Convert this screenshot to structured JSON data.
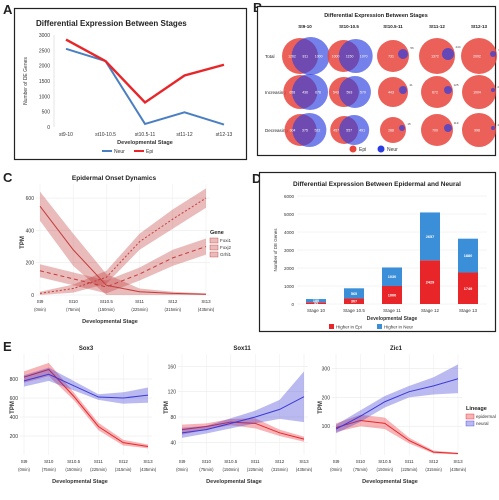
{
  "panels": {
    "a": "A",
    "b": "B",
    "c": "C",
    "d": "D",
    "e": "E"
  },
  "chart_data": [
    {
      "id": "A",
      "type": "line",
      "title": "Differential Expression Between Stages",
      "xlabel": "Developmental Stage",
      "ylabel": "Number of DE Genes",
      "categories": [
        "st9-10",
        "st10-10.5",
        "st10.5-11",
        "st11-12",
        "st12-13"
      ],
      "ylim": [
        0,
        3000
      ],
      "yticks": [
        0,
        500,
        1000,
        1500,
        2000,
        2500,
        3000
      ],
      "series": [
        {
          "name": "Neur",
          "color": "#4a7fc1",
          "values": [
            2550,
            2150,
            100,
            480,
            80
          ]
        },
        {
          "name": "Epi",
          "color": "#e8262a",
          "values": [
            2850,
            2150,
            800,
            1680,
            2030
          ]
        }
      ],
      "legend_position": "bottom"
    },
    {
      "id": "B",
      "type": "venn-grid",
      "title": "Differential Expression Between Stages",
      "columns": [
        "St9-10",
        "St10-10.5",
        "St10.5-11",
        "St11-12",
        "St12-13"
      ],
      "rows": [
        "Total",
        "Increasing",
        "Decreasing"
      ],
      "legend": [
        {
          "name": "Epi",
          "color": "#e8453c"
        },
        {
          "name": "Neur",
          "color": "#2b3de0"
        }
      ],
      "cells": [
        [
          {
            "epi_r": 18,
            "neur_r": 19,
            "overlap": 0.55,
            "labels": [
              "1262",
              "811",
              "1000"
            ]
          },
          {
            "epi_r": 16,
            "neur_r": 17,
            "overlap": 0.45,
            "labels": [
              "1000",
              "1150",
              "1070"
            ]
          },
          {
            "epi_r": 16,
            "neur_r": 5,
            "overlap": 0.15,
            "labels": [
              "731",
              "56"
            ]
          },
          {
            "epi_r": 18,
            "neur_r": 6,
            "overlap": 0.15,
            "labels": [
              "1372",
              "244"
            ]
          },
          {
            "epi_r": 18,
            "neur_r": 3,
            "overlap": 0.1,
            "labels": [
              "2002",
              "69"
            ]
          }
        ],
        [
          {
            "epi_r": 17,
            "neur_r": 18,
            "overlap": 0.55,
            "labels": [
              "658",
              "436",
              "676"
            ]
          },
          {
            "epi_r": 15,
            "neur_r": 16,
            "overlap": 0.45,
            "labels": [
              "543",
              "593",
              "579"
            ]
          },
          {
            "epi_r": 15,
            "neur_r": 4,
            "overlap": 0.1,
            "labels": [
              "443",
              "41"
            ]
          },
          {
            "epi_r": 16,
            "neur_r": 4,
            "overlap": 0.1,
            "labels": [
              "672",
              "125"
            ]
          },
          {
            "epi_r": 17,
            "neur_r": 2,
            "overlap": 0.1,
            "labels": [
              "1004",
              "26"
            ]
          }
        ],
        [
          {
            "epi_r": 16,
            "neur_r": 17,
            "overlap": 0.55,
            "labels": [
              "604",
              "375",
              "522"
            ]
          },
          {
            "epi_r": 14,
            "neur_r": 15,
            "overlap": 0.45,
            "labels": [
              "457",
              "557",
              "491"
            ]
          },
          {
            "epi_r": 13,
            "neur_r": 3,
            "overlap": 0.1,
            "labels": [
              "288",
              "15"
            ]
          },
          {
            "epi_r": 16,
            "neur_r": 4,
            "overlap": 0.1,
            "labels": [
              "700",
              "119"
            ]
          },
          {
            "epi_r": 17,
            "neur_r": 2,
            "overlap": 0.1,
            "labels": [
              "998",
              "43"
            ]
          }
        ]
      ]
    },
    {
      "id": "C",
      "type": "line",
      "title": "Epidermal Onset Dynamics",
      "xlabel": "Developmental Stage",
      "ylabel": "TPM",
      "categories": [
        "St9",
        "St10",
        "St10.5",
        "St11",
        "St12",
        "St13"
      ],
      "sublabels": [
        "(0min)",
        "(75min)",
        "(150min)",
        "(225min)",
        "(315min)",
        "(435min)"
      ],
      "ylim": [
        0,
        650
      ],
      "yticks": [
        0,
        200,
        400,
        600
      ],
      "ytick_labels": [
        "0",
        "200",
        "400",
        "600"
      ],
      "legend_title": "Gene",
      "series": [
        {
          "name": "Foxi1",
          "color": "#c33b3b",
          "dash": "4 3",
          "values": [
            150,
            100,
            50,
            130,
            230,
            300
          ],
          "band": [
            40,
            40,
            40,
            40,
            50,
            50
          ]
        },
        {
          "name": "Foxj2",
          "color": "#c33b3b",
          "dash": "2 2",
          "values": [
            10,
            40,
            110,
            330,
            470,
            600
          ],
          "band": [
            10,
            25,
            40,
            50,
            60,
            60
          ]
        },
        {
          "name": "Grhl1",
          "color": "#c33b3b",
          "dash": "none",
          "values": [
            550,
            280,
            60,
            20,
            10,
            5
          ],
          "band": [
            90,
            100,
            70,
            20,
            10,
            5
          ]
        }
      ],
      "legend_position": "right"
    },
    {
      "id": "D",
      "type": "bar",
      "title": "Differential Expression Between Epidermal and Neural",
      "xlabel": "Developmental Stage",
      "ylabel": "Number of DE Genes",
      "categories": [
        "Stage 10",
        "Stage 10.5",
        "Stage 11",
        "Stage 12",
        "Stage 13"
      ],
      "ylim": [
        0,
        6000
      ],
      "yticks": [
        0,
        1000,
        2000,
        3000,
        4000,
        5000,
        6000
      ],
      "series": [
        {
          "name": "Higher in Epi",
          "color": "#e8262a",
          "values": [
            95,
            307,
            1000,
            2429,
            1749
          ]
        },
        {
          "name": "Higher in Neur",
          "color": "#3a8fd8",
          "values": [
            180,
            565,
            1030,
            2657,
            1880
          ]
        }
      ],
      "legend_position": "bottom"
    },
    {
      "id": "E1",
      "type": "line",
      "title": "Sox3",
      "xlabel": "Developmental Stage",
      "ylabel": "TPM",
      "categories": [
        "St9",
        "St10",
        "St10.5",
        "St11",
        "St12",
        "St13"
      ],
      "sublabels": [
        "(0min)",
        "(75min)",
        "(150min)",
        "(225min)",
        "(315min)",
        "(435min)"
      ],
      "ylim": [
        0,
        1000
      ],
      "yticks": [
        200,
        400,
        600,
        800
      ],
      "ytick_labels": [
        "200",
        "400",
        "600",
        "800"
      ],
      "series": [
        {
          "name": "epidermal",
          "color": "#e8262a",
          "values": [
            820,
            900,
            620,
            300,
            130,
            90
          ],
          "band": [
            60,
            70,
            40,
            40,
            30,
            20
          ]
        },
        {
          "name": "neural",
          "color": "#3a3ad8",
          "values": [
            780,
            850,
            730,
            610,
            600,
            630
          ],
          "band": [
            60,
            70,
            50,
            30,
            60,
            80
          ]
        }
      ]
    },
    {
      "id": "E2",
      "type": "line",
      "title": "Sox11",
      "xlabel": "Developmental Stage",
      "ylabel": "TPM",
      "categories": [
        "St9",
        "St10",
        "St10.5",
        "St11",
        "St12",
        "St13"
      ],
      "sublabels": [
        "(0min)",
        "(75min)",
        "(150min)",
        "(225min)",
        "(315min)",
        "(435min)"
      ],
      "ylim": [
        20,
        170
      ],
      "yticks": [
        40,
        80,
        120,
        160
      ],
      "ytick_labels": [
        "40",
        "80",
        "120",
        "160"
      ],
      "series": [
        {
          "name": "epidermal",
          "color": "#e8262a",
          "values": [
            60,
            65,
            72,
            70,
            55,
            45
          ],
          "band": [
            8,
            5,
            5,
            8,
            5,
            4
          ]
        },
        {
          "name": "neural",
          "color": "#3a3ad8",
          "values": [
            55,
            60,
            70,
            80,
            92,
            112
          ],
          "band": [
            8,
            6,
            8,
            10,
            15,
            40
          ]
        }
      ]
    },
    {
      "id": "E3",
      "type": "line",
      "title": "Zic1",
      "xlabel": "Developmental Stage",
      "ylabel": "TPM",
      "categories": [
        "St9",
        "St10",
        "St10.5",
        "St11",
        "St12",
        "St13"
      ],
      "sublabels": [
        "(0min)",
        "(75min)",
        "(150min)",
        "(225min)",
        "(315min)",
        "(435min)"
      ],
      "ylim": [
        0,
        330
      ],
      "yticks": [
        100,
        200,
        300
      ],
      "ytick_labels": [
        "100",
        "200",
        "300"
      ],
      "legend_title": "Lineage",
      "series": [
        {
          "name": "epidermal",
          "color": "#e8262a",
          "values": [
            95,
            120,
            110,
            50,
            10,
            5
          ],
          "band": [
            15,
            20,
            20,
            10,
            5,
            3
          ]
        },
        {
          "name": "neural",
          "color": "#3a3ad8",
          "values": [
            90,
            135,
            185,
            220,
            240,
            265
          ],
          "band": [
            15,
            20,
            20,
            20,
            30,
            50
          ]
        }
      ],
      "legend_position": "right"
    }
  ]
}
